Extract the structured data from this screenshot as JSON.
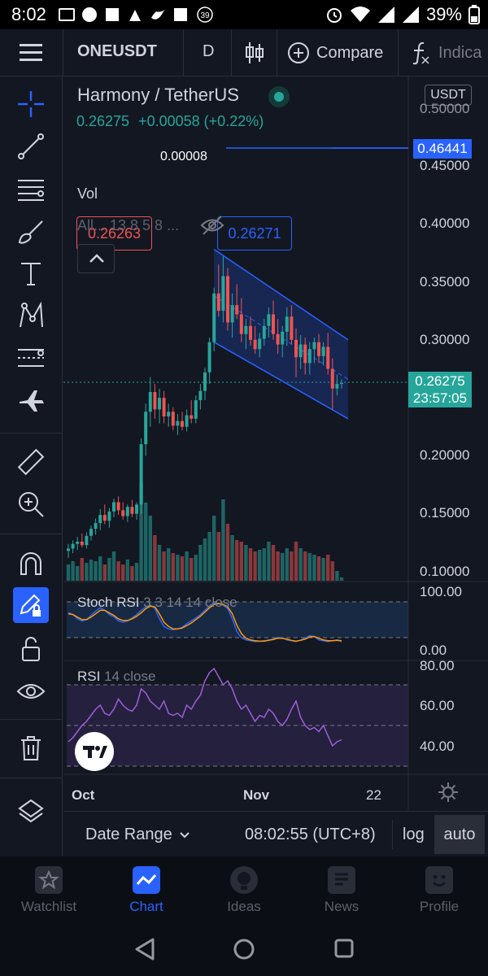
{
  "status_bar": {
    "time": "8:02",
    "notification_count": "39",
    "battery": "39%"
  },
  "toolbar": {
    "symbol": "ONEUSDT",
    "interval": "D",
    "compare_label": "Compare",
    "indicators_label": "Indica"
  },
  "legend": {
    "title": "Harmony / TetherUS",
    "price": "0.26275",
    "change": "+0.00058 (+0.22%)",
    "bid": "0.26263",
    "spread": "0.00008",
    "ask": "0.26271",
    "vol_label": "Vol",
    "indicators_collapsed": "All... 13 8 5 8 ..."
  },
  "price_axis": {
    "currency": "USDT",
    "top_partial": "0.50000",
    "ticks": [
      "0.45000",
      "0.40000",
      "0.35000",
      "0.30000",
      "0.20000",
      "0.15000",
      "0.10000"
    ],
    "line_label": "0.46441",
    "current_price": "0.26275",
    "countdown": "23:57:05"
  },
  "stoch_rsi": {
    "label": "Stoch RSI",
    "params": "3 3 14 14 close",
    "ticks": [
      "100.00",
      "0.00"
    ]
  },
  "rsi": {
    "label": "RSI",
    "params": "14 close",
    "ticks": [
      "80.00",
      "60.00",
      "40.00"
    ]
  },
  "time_axis": {
    "labels": [
      "Oct",
      "Nov",
      "22"
    ]
  },
  "bottom_bar": {
    "date_range": "Date Range",
    "clock": "08:02:55 (UTC+8)",
    "log": "log",
    "auto": "auto"
  },
  "nav": [
    {
      "label": "Watchlist"
    },
    {
      "label": "Chart"
    },
    {
      "label": "Ideas"
    },
    {
      "label": "News"
    },
    {
      "label": "Profile"
    }
  ],
  "colors": {
    "up": "#26a69a",
    "down": "#ef5350",
    "accent": "#2962ff",
    "bg": "#131722"
  },
  "chart_data": {
    "type": "candlestick",
    "candles": [
      {
        "o": 0.118,
        "h": 0.124,
        "l": 0.112,
        "c": 0.12
      },
      {
        "o": 0.12,
        "h": 0.127,
        "l": 0.116,
        "c": 0.124
      },
      {
        "o": 0.124,
        "h": 0.13,
        "l": 0.119,
        "c": 0.126
      },
      {
        "o": 0.126,
        "h": 0.133,
        "l": 0.121,
        "c": 0.123
      },
      {
        "o": 0.123,
        "h": 0.134,
        "l": 0.12,
        "c": 0.131
      },
      {
        "o": 0.131,
        "h": 0.14,
        "l": 0.127,
        "c": 0.137
      },
      {
        "o": 0.137,
        "h": 0.146,
        "l": 0.132,
        "c": 0.142
      },
      {
        "o": 0.142,
        "h": 0.154,
        "l": 0.136,
        "c": 0.149
      },
      {
        "o": 0.149,
        "h": 0.158,
        "l": 0.141,
        "c": 0.144
      },
      {
        "o": 0.144,
        "h": 0.155,
        "l": 0.138,
        "c": 0.152
      },
      {
        "o": 0.152,
        "h": 0.163,
        "l": 0.147,
        "c": 0.16
      },
      {
        "o": 0.16,
        "h": 0.165,
        "l": 0.149,
        "c": 0.153
      },
      {
        "o": 0.153,
        "h": 0.16,
        "l": 0.145,
        "c": 0.148
      },
      {
        "o": 0.148,
        "h": 0.158,
        "l": 0.143,
        "c": 0.156
      },
      {
        "o": 0.156,
        "h": 0.162,
        "l": 0.147,
        "c": 0.15
      },
      {
        "o": 0.15,
        "h": 0.16,
        "l": 0.145,
        "c": 0.158
      },
      {
        "o": 0.158,
        "h": 0.215,
        "l": 0.15,
        "c": 0.21
      },
      {
        "o": 0.21,
        "h": 0.245,
        "l": 0.2,
        "c": 0.238
      },
      {
        "o": 0.238,
        "h": 0.268,
        "l": 0.225,
        "c": 0.255
      },
      {
        "o": 0.255,
        "h": 0.262,
        "l": 0.232,
        "c": 0.24
      },
      {
        "o": 0.24,
        "h": 0.258,
        "l": 0.228,
        "c": 0.25
      },
      {
        "o": 0.25,
        "h": 0.256,
        "l": 0.228,
        "c": 0.234
      },
      {
        "o": 0.234,
        "h": 0.245,
        "l": 0.225,
        "c": 0.238
      },
      {
        "o": 0.238,
        "h": 0.242,
        "l": 0.222,
        "c": 0.226
      },
      {
        "o": 0.226,
        "h": 0.236,
        "l": 0.218,
        "c": 0.23
      },
      {
        "o": 0.23,
        "h": 0.238,
        "l": 0.222,
        "c": 0.225
      },
      {
        "o": 0.225,
        "h": 0.24,
        "l": 0.221,
        "c": 0.235
      },
      {
        "o": 0.235,
        "h": 0.248,
        "l": 0.228,
        "c": 0.232
      },
      {
        "o": 0.232,
        "h": 0.252,
        "l": 0.228,
        "c": 0.248
      },
      {
        "o": 0.248,
        "h": 0.262,
        "l": 0.24,
        "c": 0.256
      },
      {
        "o": 0.256,
        "h": 0.276,
        "l": 0.248,
        "c": 0.272
      },
      {
        "o": 0.272,
        "h": 0.302,
        "l": 0.262,
        "c": 0.298
      },
      {
        "o": 0.298,
        "h": 0.345,
        "l": 0.29,
        "c": 0.34
      },
      {
        "o": 0.34,
        "h": 0.365,
        "l": 0.32,
        "c": 0.325
      },
      {
        "o": 0.325,
        "h": 0.372,
        "l": 0.315,
        "c": 0.355
      },
      {
        "o": 0.355,
        "h": 0.362,
        "l": 0.308,
        "c": 0.315
      },
      {
        "o": 0.315,
        "h": 0.34,
        "l": 0.302,
        "c": 0.33
      },
      {
        "o": 0.33,
        "h": 0.348,
        "l": 0.318,
        "c": 0.322
      },
      {
        "o": 0.322,
        "h": 0.336,
        "l": 0.298,
        "c": 0.305
      },
      {
        "o": 0.305,
        "h": 0.318,
        "l": 0.292,
        "c": 0.312
      },
      {
        "o": 0.312,
        "h": 0.32,
        "l": 0.295,
        "c": 0.3
      },
      {
        "o": 0.3,
        "h": 0.312,
        "l": 0.288,
        "c": 0.292
      },
      {
        "o": 0.292,
        "h": 0.306,
        "l": 0.285,
        "c": 0.301
      },
      {
        "o": 0.301,
        "h": 0.318,
        "l": 0.295,
        "c": 0.312
      },
      {
        "o": 0.312,
        "h": 0.328,
        "l": 0.302,
        "c": 0.322
      },
      {
        "o": 0.322,
        "h": 0.334,
        "l": 0.3,
        "c": 0.305
      },
      {
        "o": 0.305,
        "h": 0.318,
        "l": 0.288,
        "c": 0.296
      },
      {
        "o": 0.296,
        "h": 0.312,
        "l": 0.285,
        "c": 0.307
      },
      {
        "o": 0.307,
        "h": 0.328,
        "l": 0.295,
        "c": 0.32
      },
      {
        "o": 0.32,
        "h": 0.33,
        "l": 0.296,
        "c": 0.3
      },
      {
        "o": 0.3,
        "h": 0.31,
        "l": 0.268,
        "c": 0.285
      },
      {
        "o": 0.285,
        "h": 0.304,
        "l": 0.275,
        "c": 0.296
      },
      {
        "o": 0.296,
        "h": 0.302,
        "l": 0.27,
        "c": 0.28
      },
      {
        "o": 0.28,
        "h": 0.298,
        "l": 0.27,
        "c": 0.292
      },
      {
        "o": 0.292,
        "h": 0.302,
        "l": 0.28,
        "c": 0.298
      },
      {
        "o": 0.298,
        "h": 0.305,
        "l": 0.28,
        "c": 0.286
      },
      {
        "o": 0.286,
        "h": 0.298,
        "l": 0.278,
        "c": 0.294
      },
      {
        "o": 0.294,
        "h": 0.306,
        "l": 0.27,
        "c": 0.275
      },
      {
        "o": 0.275,
        "h": 0.284,
        "l": 0.24,
        "c": 0.258
      },
      {
        "o": 0.258,
        "h": 0.27,
        "l": 0.252,
        "c": 0.262
      },
      {
        "o": 0.262,
        "h": 0.266,
        "l": 0.258,
        "c": 0.2628
      }
    ],
    "volume": [
      10,
      12,
      9,
      14,
      11,
      13,
      12,
      15,
      10,
      14,
      18,
      12,
      10,
      13,
      9,
      11,
      60,
      48,
      40,
      28,
      22,
      18,
      20,
      17,
      16,
      15,
      18,
      14,
      16,
      22,
      26,
      30,
      40,
      30,
      50,
      35,
      28,
      25,
      24,
      22,
      20,
      18,
      19,
      20,
      24,
      22,
      18,
      17,
      20,
      18,
      24,
      20,
      18,
      17,
      16,
      15,
      14,
      16,
      12,
      6,
      2
    ],
    "stoch_rsi_k": [
      75,
      70,
      60,
      55,
      58,
      68,
      78,
      86,
      80,
      70,
      65,
      55,
      52,
      55,
      62,
      70,
      80,
      88,
      92,
      85,
      60,
      42,
      36,
      34,
      36,
      40,
      48,
      55,
      62,
      70,
      80,
      90,
      98,
      96,
      92,
      84,
      60,
      30,
      15,
      10,
      8,
      6,
      7,
      8,
      10,
      12,
      16,
      14,
      10,
      8,
      6,
      10,
      14,
      20,
      18,
      10,
      8,
      6,
      8,
      10,
      6
    ],
    "stoch_rsi_d": [
      72,
      70,
      64,
      58,
      58,
      64,
      72,
      80,
      80,
      74,
      68,
      60,
      56,
      56,
      60,
      66,
      74,
      84,
      90,
      88,
      72,
      52,
      42,
      36,
      36,
      38,
      44,
      50,
      58,
      66,
      76,
      86,
      94,
      96,
      94,
      88,
      72,
      45,
      25,
      14,
      10,
      8,
      7,
      7,
      9,
      11,
      14,
      14,
      12,
      9,
      7,
      9,
      12,
      17,
      18,
      14,
      10,
      8,
      8,
      9,
      8
    ],
    "rsi": [
      42,
      44,
      47,
      50,
      52,
      55,
      58,
      60,
      56,
      55,
      58,
      63,
      60,
      58,
      57,
      60,
      68,
      66,
      62,
      60,
      58,
      62,
      56,
      55,
      56,
      54,
      60,
      58,
      62,
      65,
      72,
      76,
      78,
      74,
      70,
      72,
      68,
      62,
      58,
      60,
      56,
      52,
      55,
      54,
      58,
      56,
      52,
      50,
      53,
      58,
      62,
      54,
      50,
      48,
      49,
      47,
      50,
      45,
      40,
      42,
      43
    ],
    "channel": {
      "upper": [
        0.378,
        0.3
      ],
      "lower": [
        0.298,
        0.232
      ]
    }
  }
}
